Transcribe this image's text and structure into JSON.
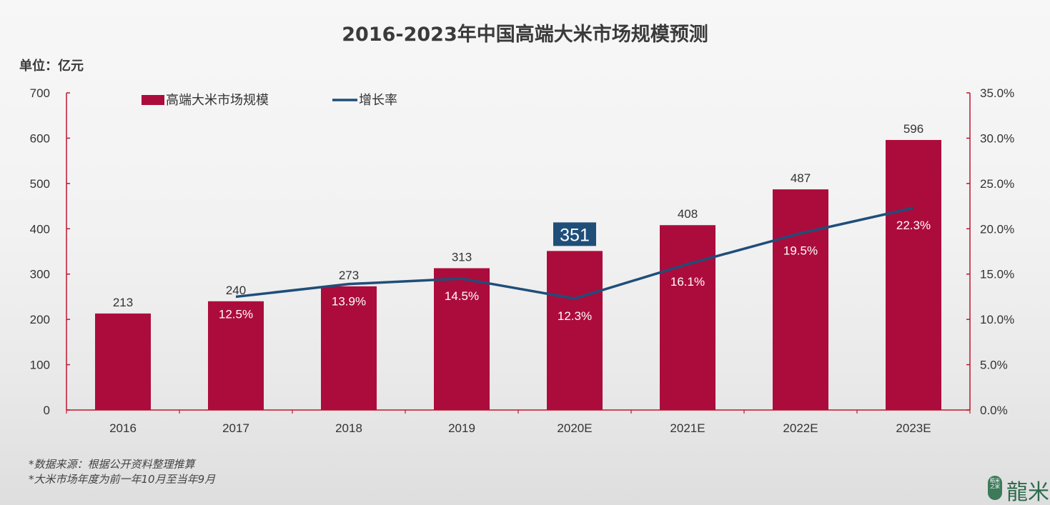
{
  "title": "2016-2023年中国高端大米市场规模预测",
  "unit_label": "单位：亿元",
  "notes": [
    "*数据来源：根据公开资料整理推算",
    "*大米市场年度为前一年10月至当年9月"
  ],
  "logo": {
    "seal_text": "稻米之家",
    "text": "龍米"
  },
  "colors": {
    "bar": "#ac0c3c",
    "line": "#1f4e79",
    "axis": "#c0152f",
    "highlight_label_bg": "#1f4e79"
  },
  "chart_data": {
    "type": "bar",
    "categories": [
      "2016",
      "2017",
      "2018",
      "2019",
      "2020E",
      "2021E",
      "2022E",
      "2023E"
    ],
    "series": [
      {
        "name": "高端大米市场规模",
        "type": "bar",
        "axis": "left",
        "values": [
          213,
          240,
          273,
          313,
          351,
          408,
          487,
          596
        ],
        "labels": [
          "213",
          "240",
          "273",
          "313",
          "351",
          "408",
          "487",
          "596"
        ]
      },
      {
        "name": "增长率",
        "type": "line",
        "axis": "right",
        "values": [
          null,
          12.5,
          13.9,
          14.5,
          12.3,
          16.1,
          19.5,
          22.3
        ],
        "labels": [
          "",
          "12.5%",
          "13.9%",
          "14.5%",
          "12.3%",
          "16.1%",
          "19.5%",
          "22.3%"
        ]
      }
    ],
    "highlight_category": "2020E",
    "y_left": {
      "min": 0,
      "max": 700,
      "ticks": [
        "0",
        "100",
        "200",
        "300",
        "400",
        "500",
        "600",
        "700"
      ]
    },
    "y_right": {
      "min": 0,
      "max": 35,
      "ticks": [
        "0.0%",
        "5.0%",
        "10.0%",
        "15.0%",
        "20.0%",
        "25.0%",
        "30.0%",
        "35.0%"
      ]
    },
    "legend_position": "top-left",
    "grid": false
  }
}
